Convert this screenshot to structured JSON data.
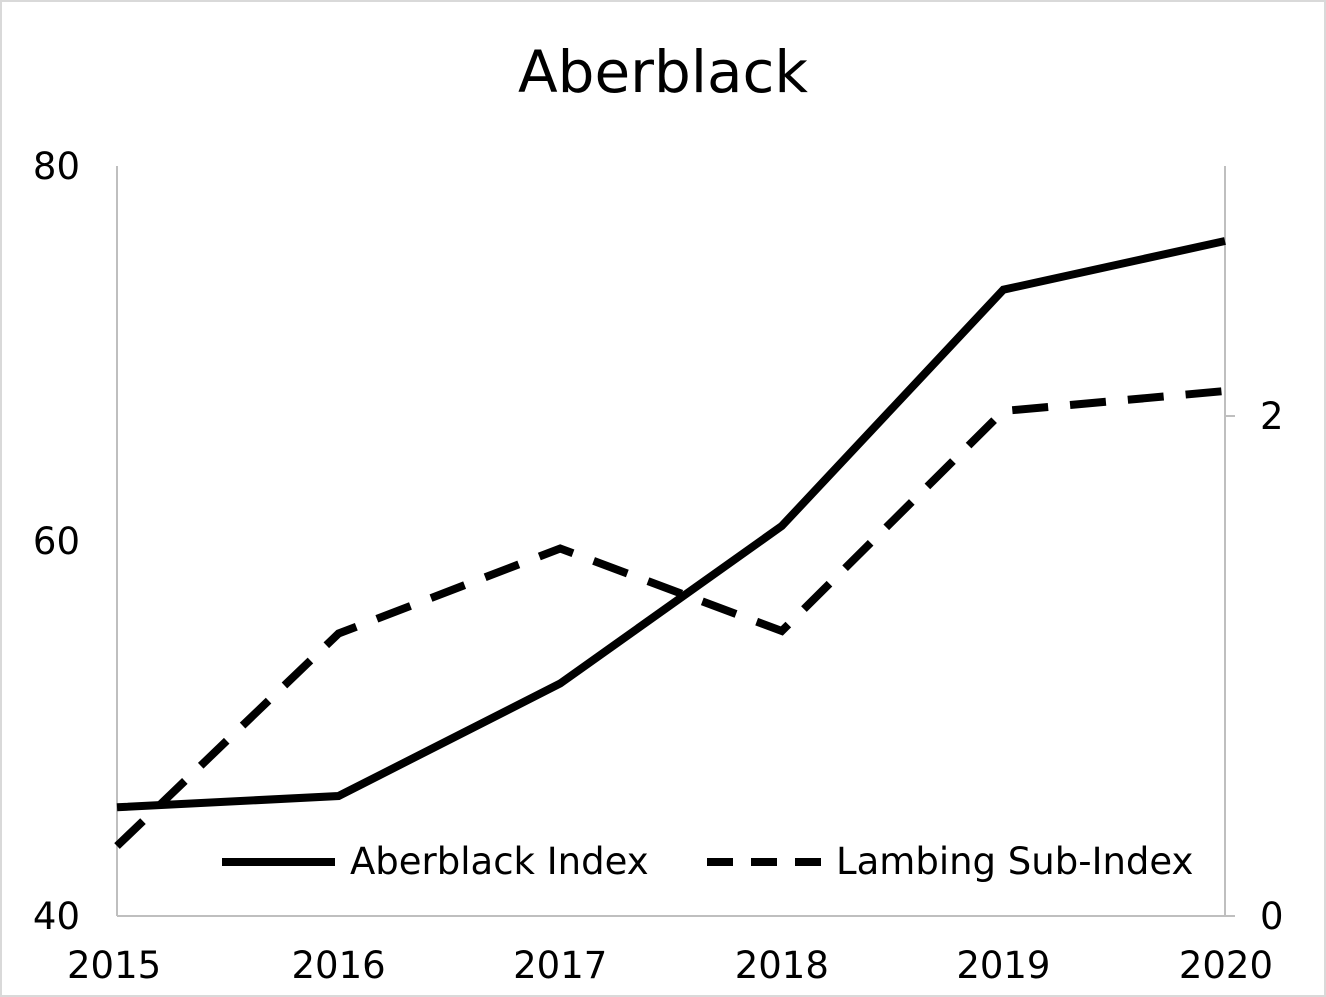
{
  "chart_data": {
    "type": "line",
    "title": "Aberblack",
    "categories": [
      "2015",
      "2016",
      "2017",
      "2018",
      "2019",
      "2020"
    ],
    "series": [
      {
        "name": "Aberblack Index",
        "axis": "left",
        "style": "solid",
        "color": "#000000",
        "values": [
          45.8,
          46.4,
          52.4,
          60.8,
          73.4,
          76.0
        ]
      },
      {
        "name": "Lambing Sub-Index",
        "axis": "right",
        "style": "dashed",
        "color": "#000000",
        "values": [
          0.28,
          1.13,
          1.47,
          1.14,
          2.02,
          2.1
        ]
      }
    ],
    "y_left": {
      "ylim": [
        40,
        80
      ],
      "ticks": [
        "40",
        "60",
        "80"
      ]
    },
    "y_right": {
      "ylim": [
        0,
        3
      ],
      "ticks": [
        "0",
        "2"
      ]
    },
    "xlabel": "",
    "ylabel": "",
    "grid": false,
    "legend": "bottom"
  }
}
